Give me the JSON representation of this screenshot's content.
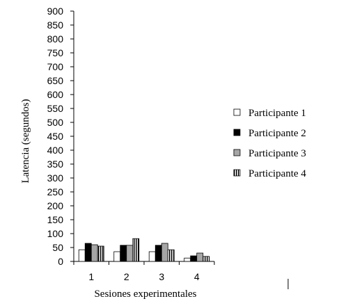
{
  "chart_data": {
    "type": "bar",
    "xlabel": "Sesiones experimentales",
    "ylabel": "Latencia (segundos)",
    "ylim": [
      0,
      900
    ],
    "ytick_step": 50,
    "categories": [
      "1",
      "2",
      "3",
      "4"
    ],
    "legend_position": "right",
    "grid": false,
    "series": [
      {
        "name": "Participante 1",
        "style": "white",
        "values": [
          42,
          35,
          35,
          12
        ]
      },
      {
        "name": "Participante 2",
        "style": "black",
        "values": [
          65,
          58,
          58,
          20
        ]
      },
      {
        "name": "Participante 3",
        "style": "gray",
        "values": [
          60,
          58,
          65,
          30
        ]
      },
      {
        "name": "Participante 4",
        "style": "striped",
        "values": [
          55,
          82,
          42,
          18
        ]
      }
    ],
    "colors": {
      "white": "#ffffff",
      "black": "#000000",
      "gray": "#a6a6a6",
      "outline": "#000000"
    }
  }
}
